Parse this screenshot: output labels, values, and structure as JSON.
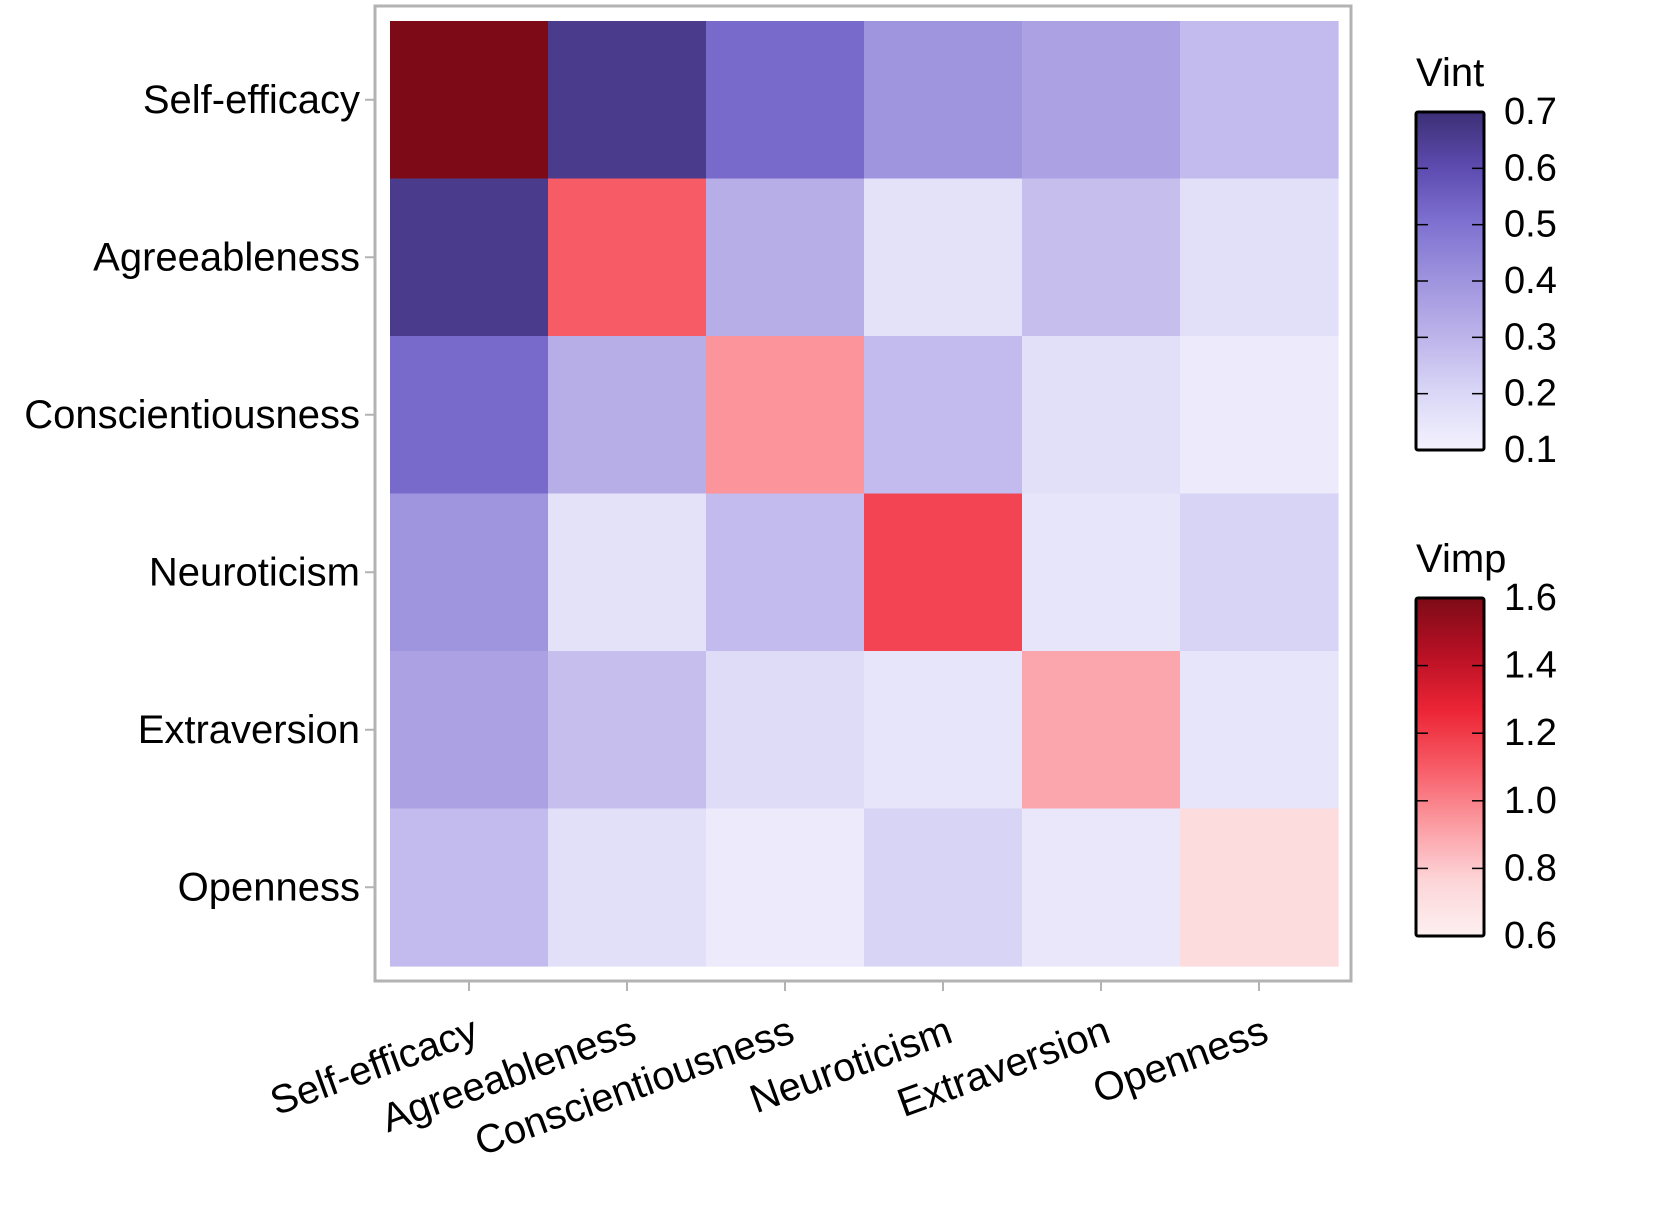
{
  "chart_data": {
    "type": "heatmap",
    "rows": [
      "Self-efficacy",
      "Agreeableness",
      "Conscientiousness",
      "Neuroticism",
      "Extraversion",
      "Openness"
    ],
    "cols": [
      "Self-efficacy",
      "Agreeableness",
      "Conscientiousness",
      "Neuroticism",
      "Extraversion",
      "Openness"
    ],
    "diagonal_metric": "Vimp",
    "offdiagonal_metric": "Vint",
    "values": [
      [
        1.6,
        0.66,
        0.52,
        0.4,
        0.36,
        0.28
      ],
      [
        0.66,
        1.1,
        0.32,
        0.16,
        0.27,
        0.17
      ],
      [
        0.52,
        0.32,
        0.95,
        0.28,
        0.17,
        0.13
      ],
      [
        0.4,
        0.16,
        0.28,
        1.17,
        0.15,
        0.21
      ],
      [
        0.36,
        0.27,
        0.18,
        0.15,
        0.9,
        0.15
      ],
      [
        0.28,
        0.17,
        0.13,
        0.21,
        0.14,
        0.72
      ]
    ],
    "legends": [
      {
        "title": "Vint",
        "range": [
          0.1,
          0.7
        ],
        "ticks": [
          "0.7",
          "0.6",
          "0.5",
          "0.4",
          "0.3",
          "0.2",
          "0.1"
        ],
        "colors": [
          "#f4f2fd",
          "#dad7f7",
          "#bdb4ea",
          "#9f94de",
          "#7f72d1",
          "#5e4cb0",
          "#3c2f75"
        ]
      },
      {
        "title": "Vimp",
        "range": [
          0.6,
          1.6
        ],
        "ticks": [
          "1.6",
          "1.4",
          "1.2",
          "1.0",
          "0.8",
          "0.6"
        ],
        "colors": [
          "#fdf0f1",
          "#fdd4d7",
          "#fb9aa1",
          "#f75b66",
          "#ec2536",
          "#b81024",
          "#7d0b17"
        ]
      }
    ]
  }
}
